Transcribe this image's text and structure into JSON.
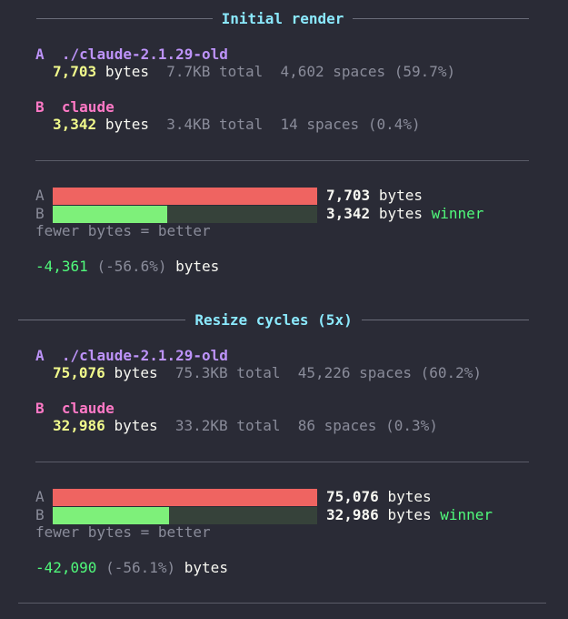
{
  "sections": [
    {
      "title": "Initial render",
      "runs": [
        {
          "letter": "A",
          "name": "./claude-2.1.29-old",
          "bytes": {
            "value": 7703,
            "label": "7,703"
          },
          "unit": "bytes",
          "total": "7.7KB total",
          "spaces": "4,602 spaces (59.7%)"
        },
        {
          "letter": "B",
          "name": "claude",
          "bytes": {
            "value": 3342,
            "label": "3,342"
          },
          "unit": "bytes",
          "total": "3.4KB total",
          "spaces": "14 spaces (0.4%)",
          "tag": "winner"
        }
      ],
      "note": "fewer bytes = better",
      "diff": "-4,361",
      "diff_pct": "(-56.6%)",
      "diff_unit": "bytes"
    },
    {
      "title": "Resize cycles (5x)",
      "runs": [
        {
          "letter": "A",
          "name": "./claude-2.1.29-old",
          "bytes": {
            "value": 75076,
            "label": "75,076"
          },
          "unit": "bytes",
          "total": "75.3KB total",
          "spaces": "45,226 spaces (60.2%)"
        },
        {
          "letter": "B",
          "name": "claude",
          "bytes": {
            "value": 32986,
            "label": "32,986"
          },
          "unit": "bytes",
          "total": "33.2KB total",
          "spaces": "86 spaces (0.3%)",
          "tag": "winner"
        }
      ],
      "note": "fewer bytes = better",
      "diff": "-42,090",
      "diff_pct": "(-56.1%)",
      "diff_unit": "bytes"
    }
  ]
}
